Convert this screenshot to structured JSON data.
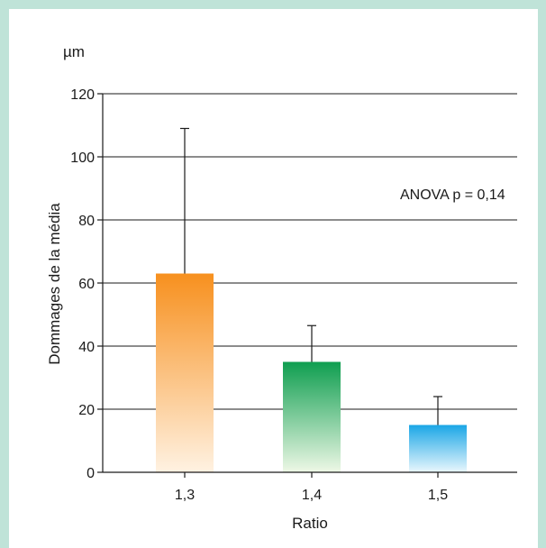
{
  "chart_data": {
    "type": "bar",
    "unit_label": "µm",
    "ylabel": "Dommages de la média",
    "xlabel": "Ratio",
    "annotation": "ANOVA p = 0,14",
    "categories": [
      "1,3",
      "1,4",
      "1,5"
    ],
    "values": [
      63,
      35,
      15
    ],
    "error_upper": [
      109,
      46.5,
      24
    ],
    "ylim": [
      0,
      120
    ],
    "yticks": [
      0,
      20,
      40,
      60,
      80,
      100,
      120
    ],
    "grid": true,
    "bar_colors": [
      {
        "top": "#f7901e",
        "bottom": "#fff2e2"
      },
      {
        "top": "#0f9e50",
        "bottom": "#eef8e6"
      },
      {
        "top": "#1aa6e6",
        "bottom": "#eaf7fd"
      }
    ]
  },
  "colors": {
    "frame": "#bfe3d8",
    "axis": "#1a1a1a"
  }
}
